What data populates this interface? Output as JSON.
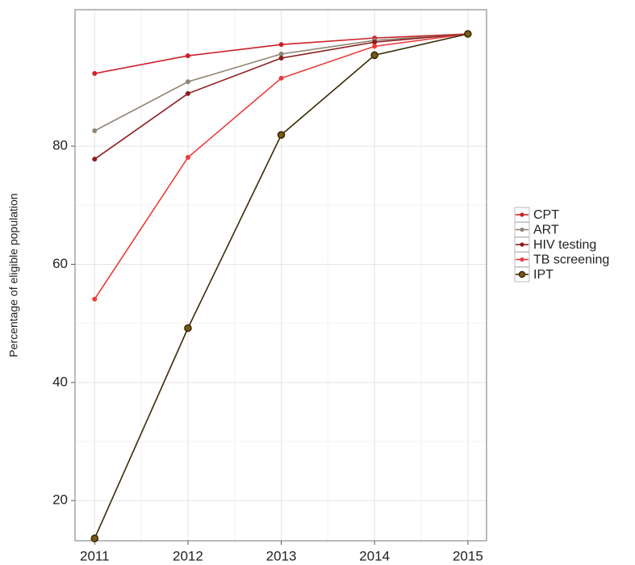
{
  "chart_data": {
    "type": "line",
    "y_label": "Percentage of eligible population",
    "x": [
      2011,
      2012,
      2013,
      2014,
      2015
    ],
    "xlim": [
      2010.79,
      2015.2
    ],
    "xticks": [
      2011,
      2012,
      2013,
      2014,
      2015
    ],
    "ylim": [
      13.2,
      103.1
    ],
    "yticks": [
      20,
      40,
      60,
      80
    ],
    "grid": true,
    "legend": "right",
    "series": [
      {
        "name": "CPT",
        "color": "#cc2229",
        "values": [
          92.3,
          95.3,
          97.2,
          98.3,
          99.0
        ]
      },
      {
        "name": "ART",
        "color": "#8f8573",
        "values": [
          82.6,
          90.9,
          95.6,
          97.9,
          99.0
        ]
      },
      {
        "name": "HIV testing",
        "color": "#8b1c1e",
        "values": [
          77.8,
          88.9,
          94.9,
          97.6,
          99.0
        ]
      },
      {
        "name": "TB screening",
        "color": "#ee3a3a",
        "values": [
          54.1,
          78.1,
          91.5,
          96.9,
          99.0
        ]
      },
      {
        "name": "IPT",
        "color": "#3a2a06",
        "values": [
          13.6,
          49.2,
          81.9,
          95.4,
          99.0
        ]
      }
    ]
  }
}
